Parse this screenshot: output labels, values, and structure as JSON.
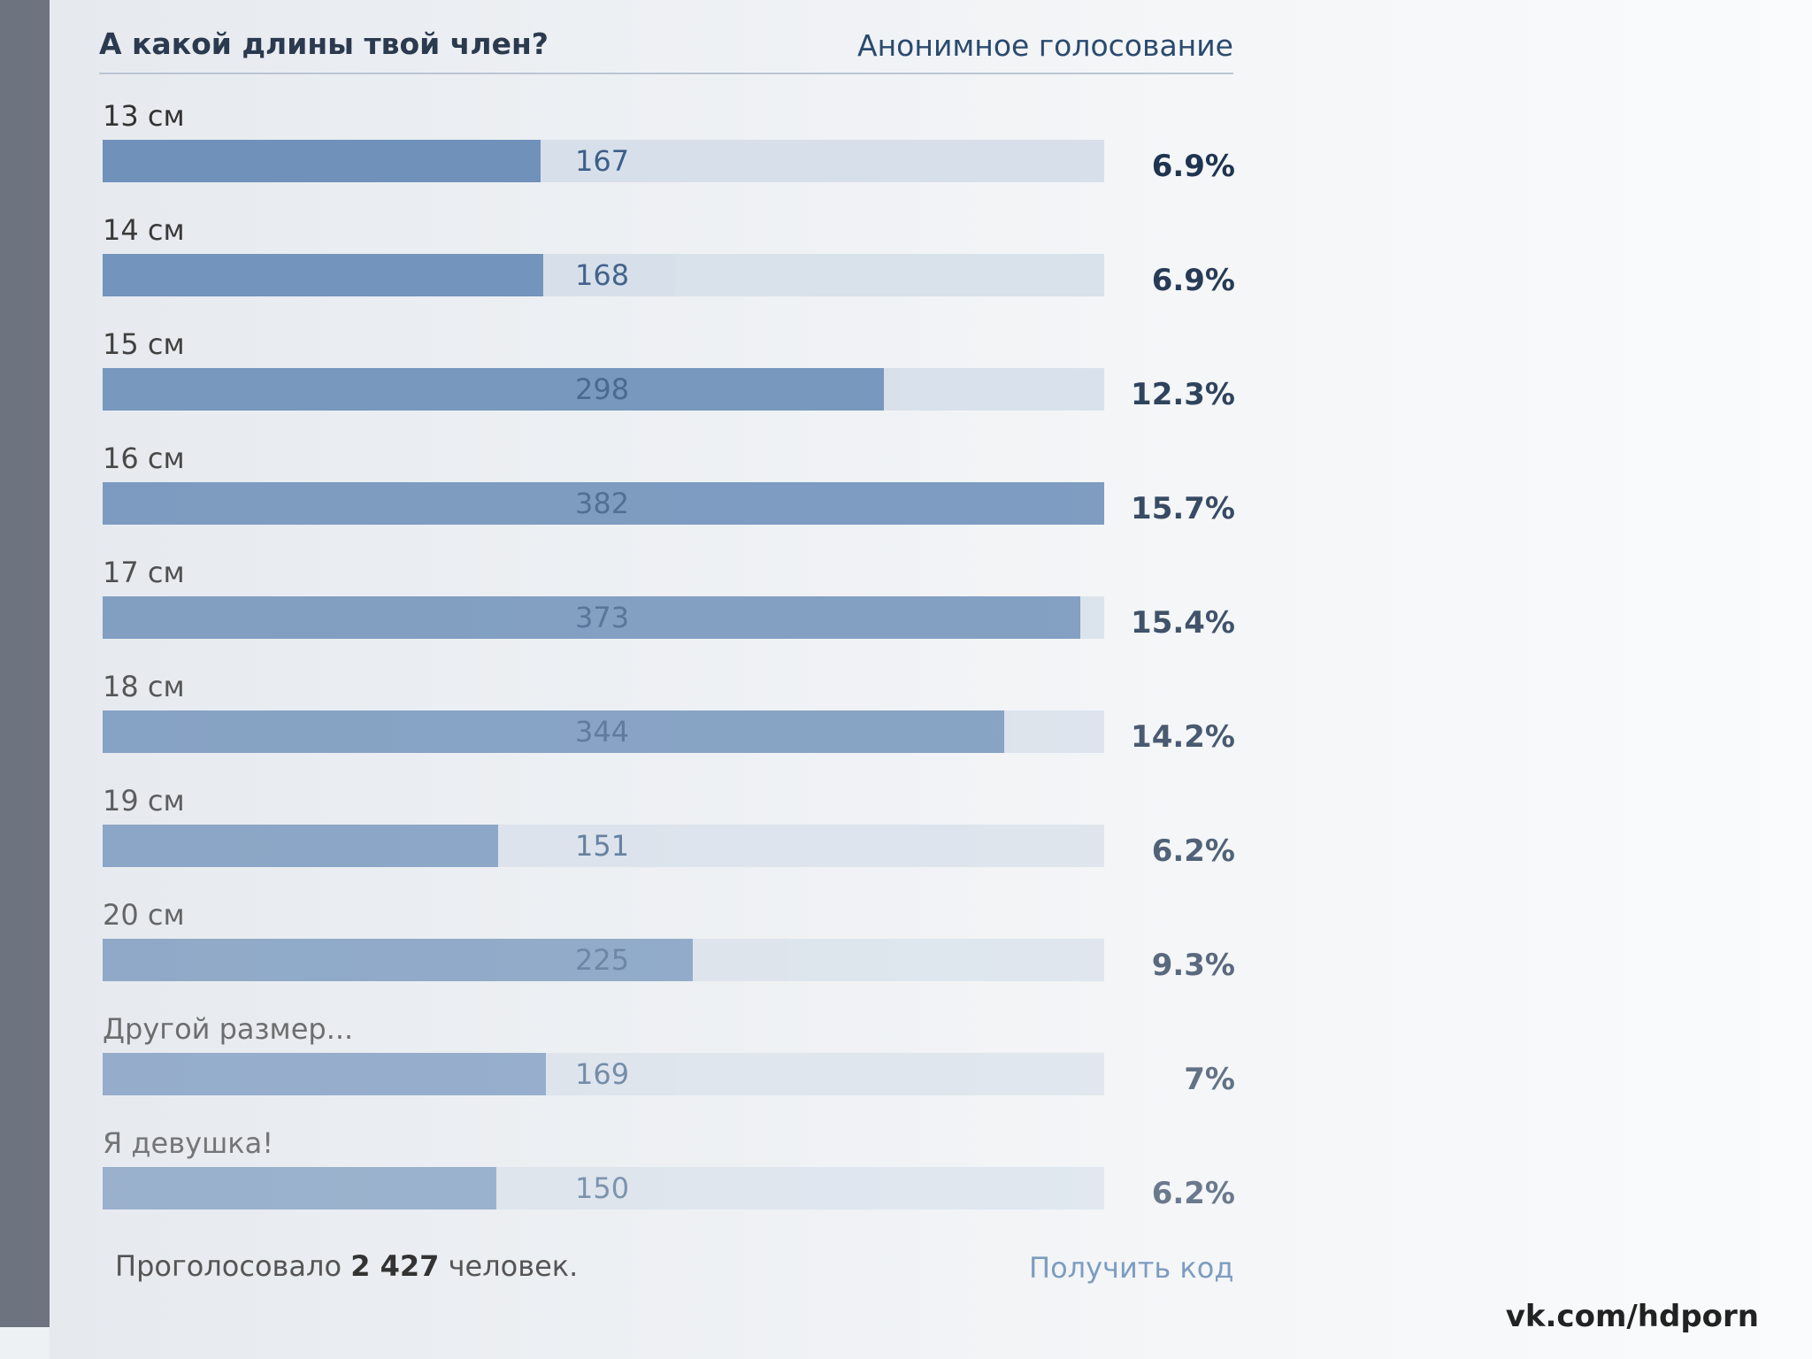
{
  "header": {
    "title": "А какой длины твой член?",
    "subtitle": "Анонимное голосование"
  },
  "options": [
    {
      "label": "13 см",
      "votes": 167,
      "percent": "6.9%"
    },
    {
      "label": "14 см",
      "votes": 168,
      "percent": "6.9%"
    },
    {
      "label": "15 см",
      "votes": 298,
      "percent": "12.3%"
    },
    {
      "label": "16 см",
      "votes": 382,
      "percent": "15.7%"
    },
    {
      "label": "17 см",
      "votes": 373,
      "percent": "15.4%"
    },
    {
      "label": "18 см",
      "votes": 344,
      "percent": "14.2%"
    },
    {
      "label": "19 см",
      "votes": 151,
      "percent": "6.2%"
    },
    {
      "label": "20 см",
      "votes": 225,
      "percent": "9.3%"
    },
    {
      "label": "Другой размер...",
      "votes": 169,
      "percent": "7%"
    },
    {
      "label": "Я девушка!",
      "votes": 150,
      "percent": "6.2%"
    }
  ],
  "footer": {
    "prefix": "Проголосовало",
    "total": "2 427",
    "suffix": "человек.",
    "link": "Получить код"
  },
  "watermark": "vk.com/hdporn"
}
